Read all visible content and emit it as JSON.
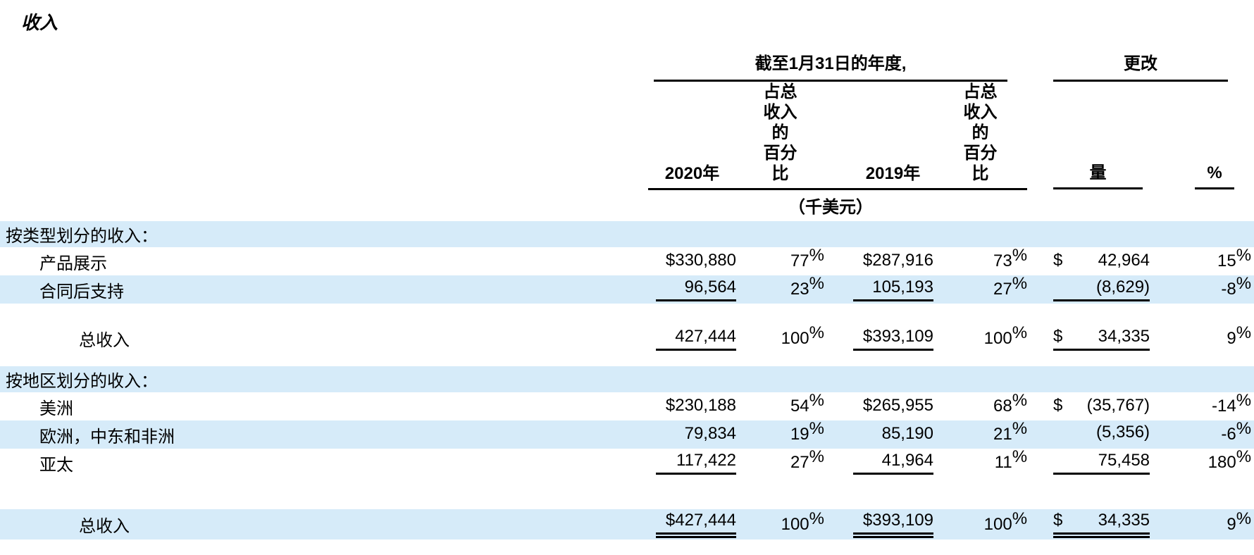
{
  "title": "收入",
  "table": {
    "group_headers": {
      "period": "截至1月31日的年度,",
      "change": "更改"
    },
    "col_headers": {
      "y2020": "2020年",
      "pct_lines": [
        "占总",
        "收入",
        "的",
        "百分",
        "比"
      ],
      "y2019": "2019年",
      "amount": "量",
      "percent": "%"
    },
    "unit_note": "（千美元）",
    "colors": {
      "stripe_blue": "#d6ebf9",
      "rule_black": "#000000"
    },
    "rows": [
      {
        "type": "section",
        "bg": "blue",
        "indent": 0,
        "label": "按类型划分的收入："
      },
      {
        "type": "data",
        "bg": "white",
        "indent": 1,
        "label": "产品展示",
        "a1": "$330,880",
        "p1": "77",
        "a2": "$287,916",
        "p2": "73",
        "d3": "$",
        "a3": "42,964",
        "p3": "15",
        "u": "none"
      },
      {
        "type": "data",
        "bg": "blue",
        "indent": 1,
        "label": "合同后支持",
        "a1": "96,564",
        "p1": "23",
        "a2": "105,193",
        "p2": "27",
        "d3": "",
        "a3": "(8,629)",
        "p3": "-8",
        "u": "single"
      },
      {
        "type": "spacer",
        "h": 28
      },
      {
        "type": "total",
        "bg": "white",
        "indent": 2,
        "label": "总收入",
        "a1": "427,444",
        "p1": "100",
        "a2": "$393,109",
        "p2": "100",
        "d3": "$",
        "a3": "34,335",
        "p3": "9",
        "u": "single"
      },
      {
        "type": "spacer",
        "h": 18
      },
      {
        "type": "section",
        "bg": "blue",
        "indent": 0,
        "label": "按地区划分的收入："
      },
      {
        "type": "data",
        "bg": "white",
        "indent": 1,
        "label": "美洲",
        "a1": "$230,188",
        "p1": "54",
        "a2": "$265,955",
        "p2": "68",
        "d3": "$",
        "a3": "(35,767)",
        "p3": "-14",
        "u": "none"
      },
      {
        "type": "data",
        "bg": "blue",
        "indent": 1,
        "label": "欧洲，中东和非洲",
        "a1": "79,834",
        "p1": "19",
        "a2": "85,190",
        "p2": "21",
        "d3": "",
        "a3": "(5,356)",
        "p3": "-6",
        "u": "none"
      },
      {
        "type": "data",
        "bg": "white",
        "indent": 1,
        "label": "亚太",
        "a1": "117,422",
        "p1": "27",
        "a2": "41,964",
        "p2": "11",
        "d3": "",
        "a3": "75,458",
        "p3": "180",
        "u": "single"
      },
      {
        "type": "spacer",
        "h": 46
      },
      {
        "type": "total",
        "bg": "blue",
        "indent": 2,
        "label": "总收入",
        "a1": "$427,444",
        "p1": "100",
        "a2": "$393,109",
        "p2": "100",
        "d3": "$",
        "a3": "34,335",
        "p3": "9",
        "u": "double"
      }
    ]
  }
}
